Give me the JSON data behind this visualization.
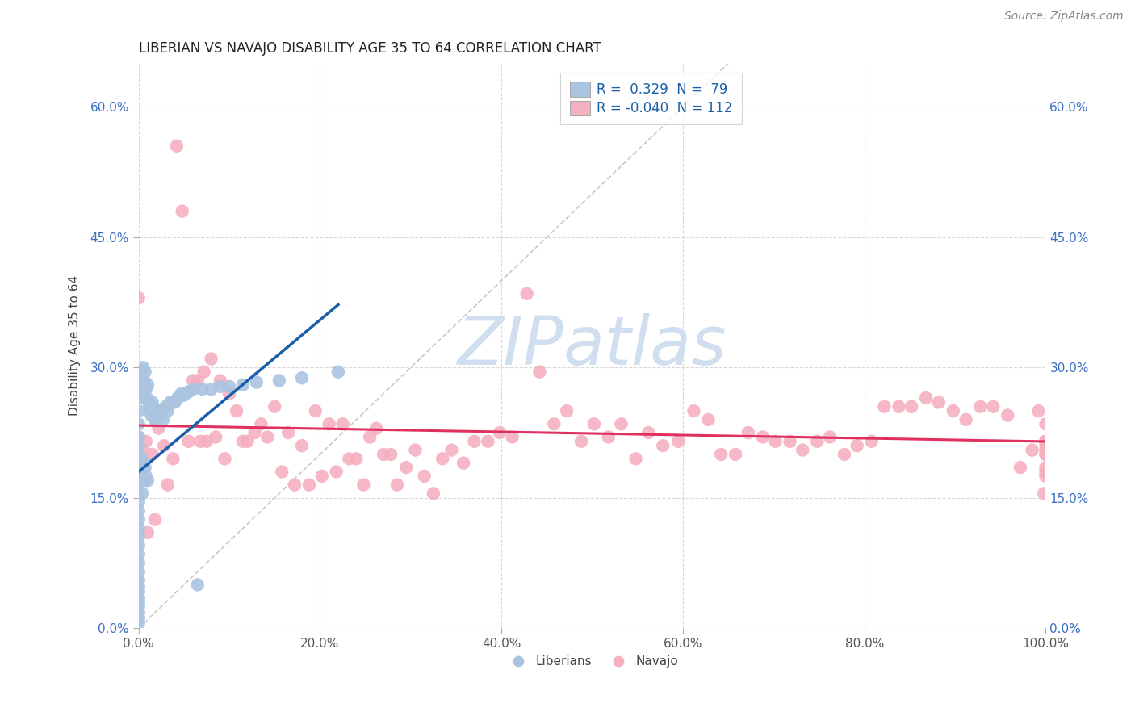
{
  "title": "LIBERIAN VS NAVAJO DISABILITY AGE 35 TO 64 CORRELATION CHART",
  "source_text": "Source: ZipAtlas.com",
  "ylabel": "Disability Age 35 to 64",
  "xlim": [
    0.0,
    1.0
  ],
  "ylim": [
    0.0,
    0.65
  ],
  "x_ticks": [
    0.0,
    0.2,
    0.4,
    0.6,
    0.8,
    1.0
  ],
  "x_tick_labels": [
    "0.0%",
    "20.0%",
    "40.0%",
    "60.0%",
    "80.0%",
    "100.0%"
  ],
  "y_ticks": [
    0.0,
    0.15,
    0.3,
    0.45,
    0.6
  ],
  "y_tick_labels": [
    "0.0%",
    "15.0%",
    "30.0%",
    "45.0%",
    "60.0%"
  ],
  "liberian_color": "#aac4e0",
  "navajo_color": "#f5b0c0",
  "liberian_line_color": "#1a5fa8",
  "navajo_line_color": "#e03060",
  "diagonal_color": "#c8c8c8",
  "background_color": "#ffffff",
  "grid_color": "#d8d8d8",
  "watermark_color": "#d0dff0",
  "liberian_x": [
    0.0,
    0.0,
    0.0,
    0.0,
    0.0,
    0.0,
    0.0,
    0.0,
    0.0,
    0.0,
    0.0,
    0.0,
    0.0,
    0.0,
    0.0,
    0.0,
    0.0,
    0.0,
    0.0,
    0.0,
    0.0,
    0.0,
    0.0,
    0.0,
    0.0,
    0.0,
    0.0,
    0.0,
    0.0,
    0.0,
    0.003,
    0.003,
    0.004,
    0.004,
    0.005,
    0.005,
    0.006,
    0.006,
    0.007,
    0.007,
    0.008,
    0.008,
    0.009,
    0.01,
    0.01,
    0.011,
    0.012,
    0.013,
    0.014,
    0.015,
    0.016,
    0.017,
    0.018,
    0.019,
    0.02,
    0.022,
    0.024,
    0.025,
    0.027,
    0.03,
    0.032,
    0.035,
    0.038,
    0.04,
    0.043,
    0.047,
    0.05,
    0.055,
    0.06,
    0.065,
    0.07,
    0.08,
    0.09,
    0.1,
    0.115,
    0.13,
    0.155,
    0.18,
    0.22
  ],
  "liberian_y": [
    0.285,
    0.265,
    0.25,
    0.235,
    0.22,
    0.21,
    0.2,
    0.195,
    0.185,
    0.175,
    0.165,
    0.155,
    0.145,
    0.135,
    0.125,
    0.115,
    0.105,
    0.095,
    0.085,
    0.075,
    0.065,
    0.055,
    0.048,
    0.042,
    0.035,
    0.03,
    0.025,
    0.018,
    0.012,
    0.006,
    0.27,
    0.195,
    0.28,
    0.155,
    0.3,
    0.19,
    0.285,
    0.17,
    0.295,
    0.185,
    0.275,
    0.175,
    0.265,
    0.28,
    0.17,
    0.26,
    0.255,
    0.25,
    0.245,
    0.26,
    0.255,
    0.25,
    0.24,
    0.245,
    0.24,
    0.25,
    0.245,
    0.25,
    0.24,
    0.255,
    0.25,
    0.26,
    0.26,
    0.26,
    0.265,
    0.27,
    0.268,
    0.272,
    0.275,
    0.05,
    0.275,
    0.275,
    0.278,
    0.278,
    0.28,
    0.283,
    0.285,
    0.288,
    0.295
  ],
  "navajo_x": [
    0.0,
    0.0,
    0.005,
    0.008,
    0.01,
    0.015,
    0.018,
    0.022,
    0.028,
    0.032,
    0.038,
    0.042,
    0.048,
    0.055,
    0.06,
    0.065,
    0.068,
    0.072,
    0.075,
    0.08,
    0.085,
    0.09,
    0.095,
    0.1,
    0.108,
    0.115,
    0.12,
    0.128,
    0.135,
    0.142,
    0.15,
    0.158,
    0.165,
    0.172,
    0.18,
    0.188,
    0.195,
    0.202,
    0.21,
    0.218,
    0.225,
    0.232,
    0.24,
    0.248,
    0.255,
    0.262,
    0.27,
    0.278,
    0.285,
    0.295,
    0.305,
    0.315,
    0.325,
    0.335,
    0.345,
    0.358,
    0.37,
    0.385,
    0.398,
    0.412,
    0.428,
    0.442,
    0.458,
    0.472,
    0.488,
    0.502,
    0.518,
    0.532,
    0.548,
    0.562,
    0.578,
    0.595,
    0.612,
    0.628,
    0.642,
    0.658,
    0.672,
    0.688,
    0.702,
    0.718,
    0.732,
    0.748,
    0.762,
    0.778,
    0.792,
    0.808,
    0.822,
    0.838,
    0.852,
    0.868,
    0.882,
    0.898,
    0.912,
    0.928,
    0.942,
    0.958,
    0.972,
    0.985,
    0.992,
    0.998,
    1.0,
    1.0,
    1.0,
    1.0,
    1.0,
    1.0,
    1.0,
    1.0,
    1.0,
    1.0,
    1.0,
    1.0
  ],
  "navajo_y": [
    0.22,
    0.38,
    0.205,
    0.215,
    0.11,
    0.2,
    0.125,
    0.23,
    0.21,
    0.165,
    0.195,
    0.555,
    0.48,
    0.215,
    0.285,
    0.285,
    0.215,
    0.295,
    0.215,
    0.31,
    0.22,
    0.285,
    0.195,
    0.27,
    0.25,
    0.215,
    0.215,
    0.225,
    0.235,
    0.22,
    0.255,
    0.18,
    0.225,
    0.165,
    0.21,
    0.165,
    0.25,
    0.175,
    0.235,
    0.18,
    0.235,
    0.195,
    0.195,
    0.165,
    0.22,
    0.23,
    0.2,
    0.2,
    0.165,
    0.185,
    0.205,
    0.175,
    0.155,
    0.195,
    0.205,
    0.19,
    0.215,
    0.215,
    0.225,
    0.22,
    0.385,
    0.295,
    0.235,
    0.25,
    0.215,
    0.235,
    0.22,
    0.235,
    0.195,
    0.225,
    0.21,
    0.215,
    0.25,
    0.24,
    0.2,
    0.2,
    0.225,
    0.22,
    0.215,
    0.215,
    0.205,
    0.215,
    0.22,
    0.2,
    0.21,
    0.215,
    0.255,
    0.255,
    0.255,
    0.265,
    0.26,
    0.25,
    0.24,
    0.255,
    0.255,
    0.245,
    0.185,
    0.205,
    0.25,
    0.155,
    0.235,
    0.215,
    0.21,
    0.2,
    0.215,
    0.175,
    0.18,
    0.205,
    0.215,
    0.185,
    0.2,
    0.215
  ]
}
